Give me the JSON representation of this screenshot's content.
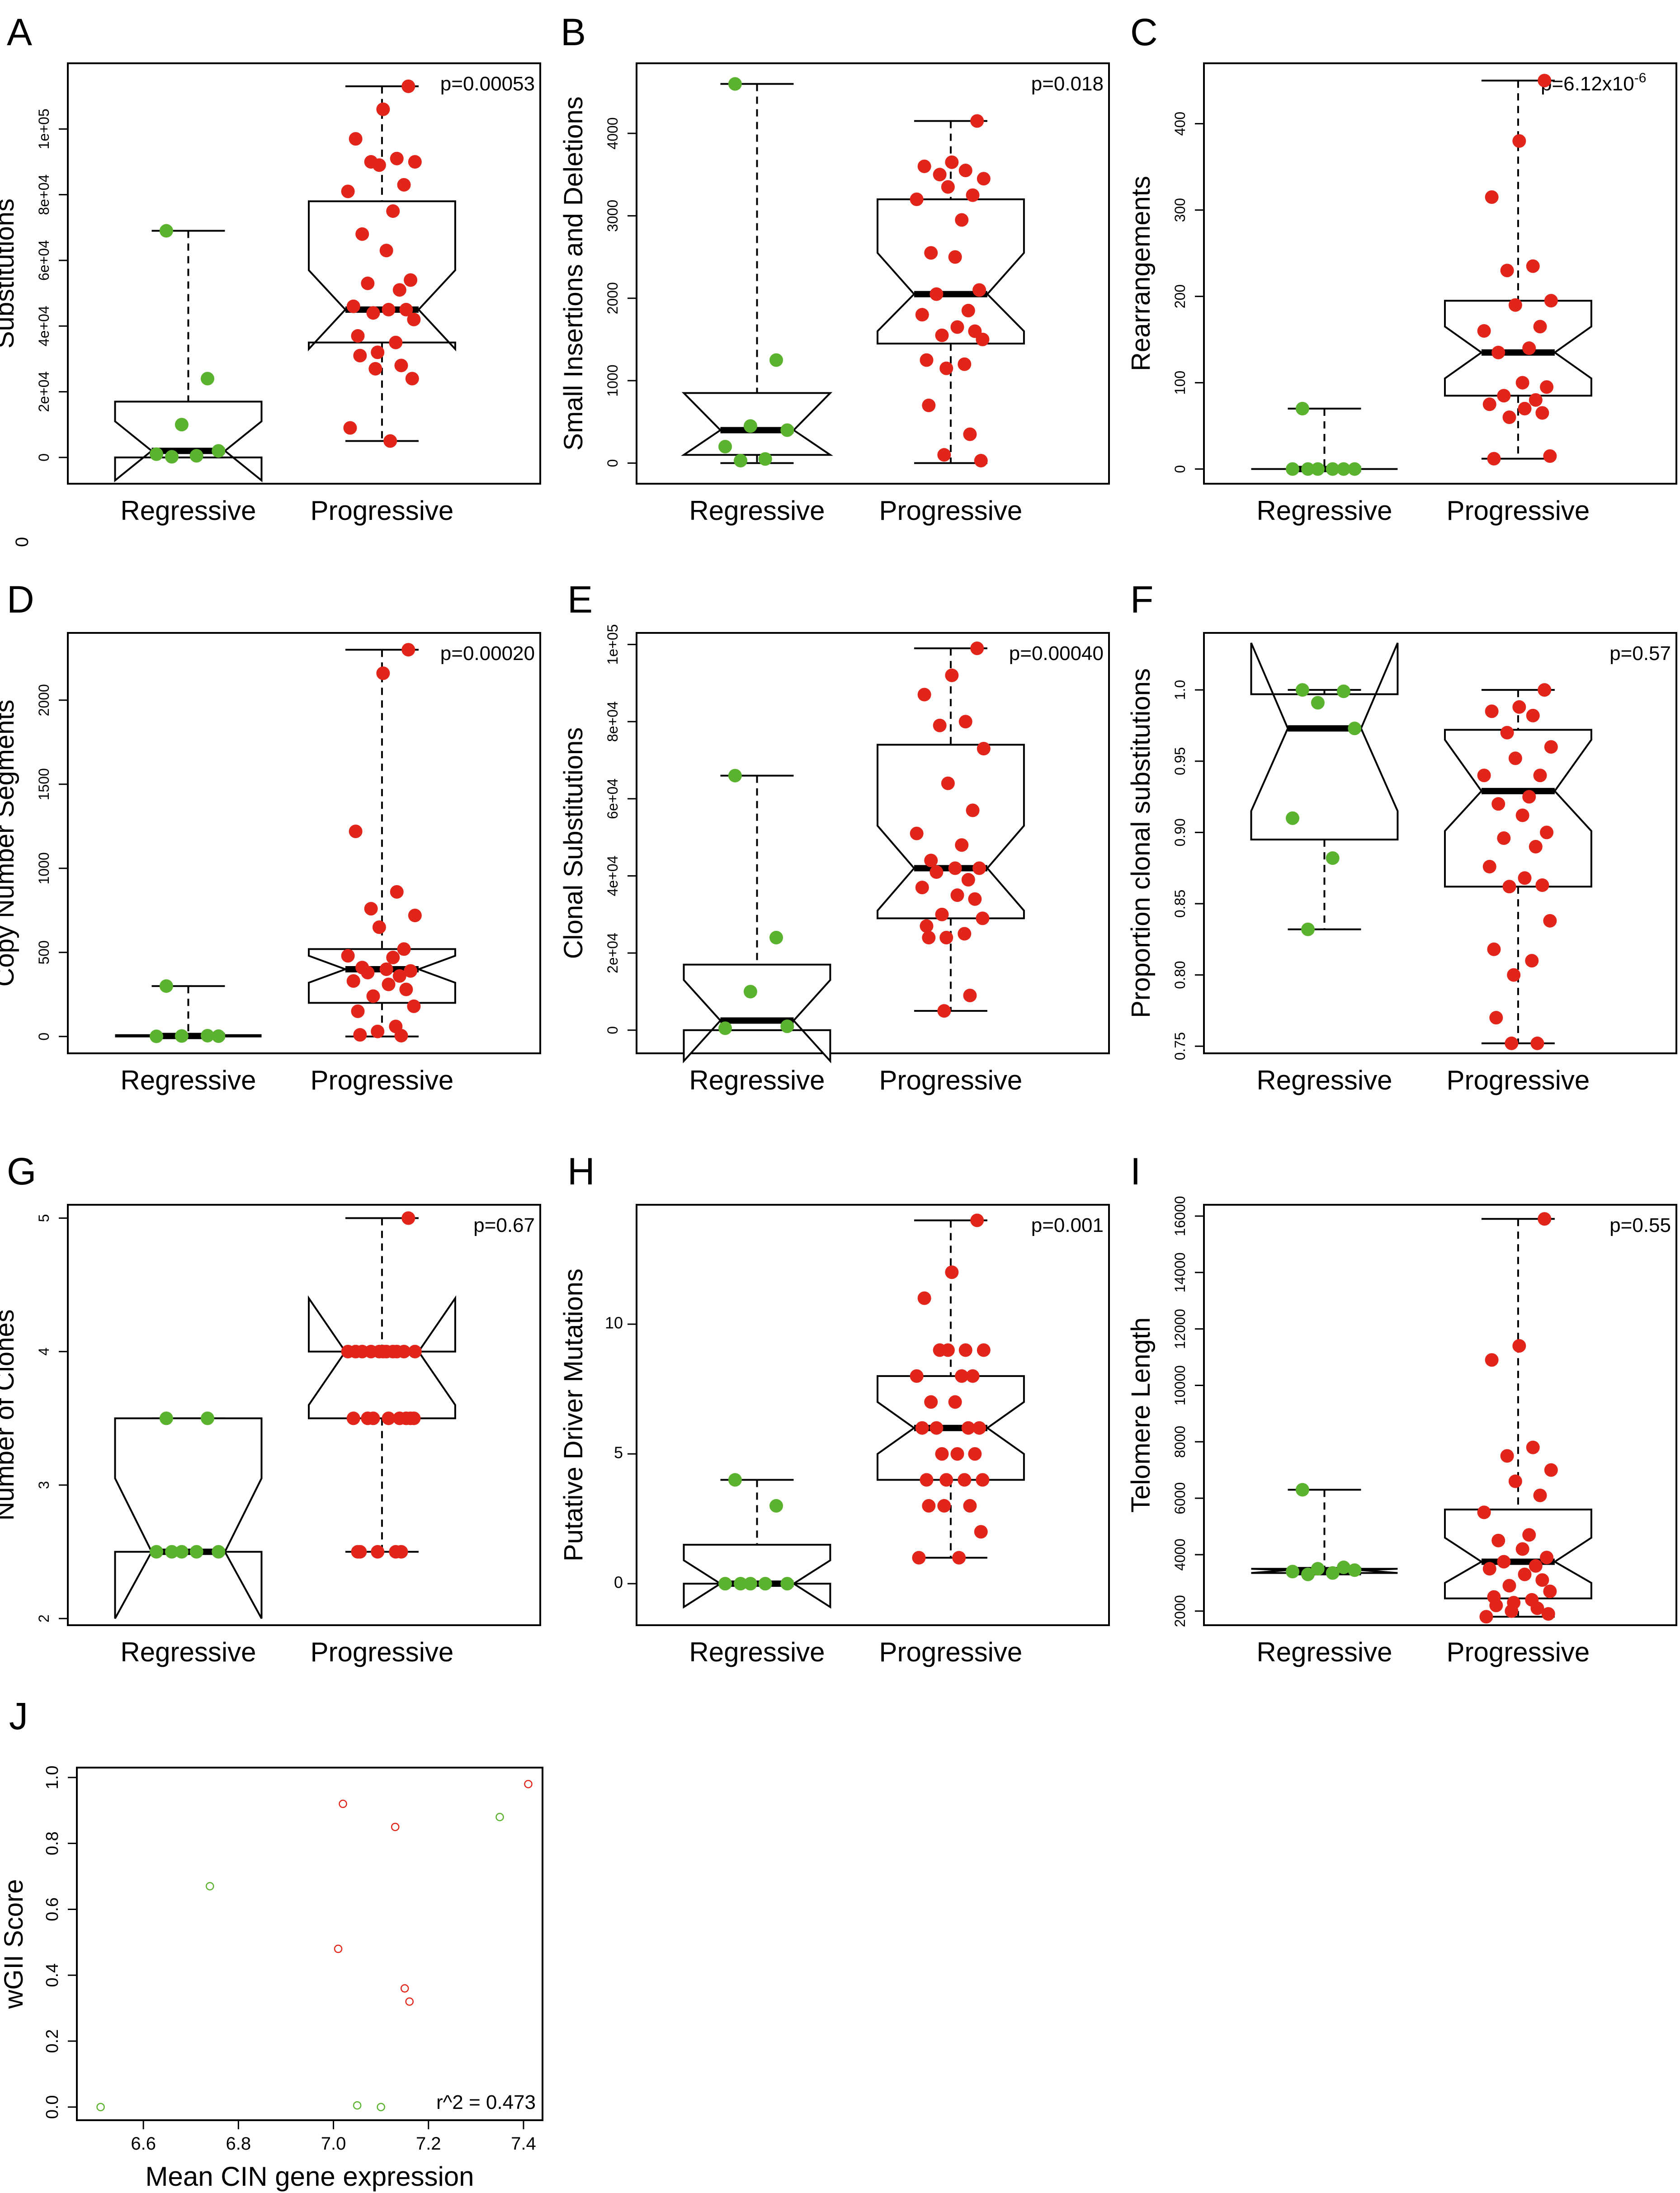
{
  "figure": {
    "stray_mark": "0"
  },
  "style": {
    "regressive_color": "#5ab22e",
    "progressive_color": "#e1251b"
  },
  "chart_data": [
    {
      "id": "A",
      "panel_label": "A",
      "type": "boxplot",
      "ylabel": "Substitutions",
      "p_text": "p=0.00053",
      "categories": [
        "Regressive",
        "Progressive"
      ],
      "ylim": [
        -8000,
        120000
      ],
      "ticks": [
        0,
        20000,
        40000,
        60000,
        80000,
        100000
      ],
      "tick_labels": [
        "0",
        "2e+04",
        "4e+04",
        "6e+04",
        "8e+04",
        "1e+05"
      ],
      "tick_rotate": true,
      "groups": [
        {
          "name": "Regressive",
          "q1": 0,
          "median": 2000,
          "q3": 17000,
          "wlo": 0,
          "whi": 69000,
          "nlo": -7000,
          "nhi": 11000,
          "points": [
            69000,
            24000,
            10000,
            2000,
            1000,
            500,
            200
          ]
        },
        {
          "name": "Progressive",
          "q1": 35000,
          "median": 45000,
          "q3": 78000,
          "wlo": 5000,
          "whi": 113000,
          "nlo": 33000,
          "nhi": 57000,
          "points": [
            113000,
            106000,
            97000,
            91000,
            90000,
            90000,
            89000,
            83000,
            81000,
            75000,
            68000,
            63000,
            54000,
            53000,
            51000,
            46000,
            45000,
            45000,
            44000,
            42000,
            37000,
            35000,
            32000,
            31000,
            28000,
            27000,
            24000,
            9000,
            5000
          ]
        }
      ]
    },
    {
      "id": "B",
      "panel_label": "B",
      "type": "boxplot",
      "ylabel": "Small Insertions and Deletions",
      "p_text": "p=0.018",
      "categories": [
        "Regressive",
        "Progressive"
      ],
      "ylim": [
        -250,
        4850
      ],
      "ticks": [
        0,
        1000,
        2000,
        3000,
        4000
      ],
      "tick_labels": [
        "0",
        "1000",
        "2000",
        "3000",
        "4000"
      ],
      "tick_rotate": true,
      "groups": [
        {
          "name": "Regressive",
          "q1": 100,
          "median": 400,
          "q3": 850,
          "wlo": 0,
          "whi": 4600,
          "nlo": 100,
          "nhi": 850,
          "points": [
            4600,
            1250,
            450,
            400,
            200,
            50,
            30
          ]
        },
        {
          "name": "Progressive",
          "q1": 1450,
          "median": 2050,
          "q3": 3200,
          "wlo": 0,
          "whi": 4150,
          "nlo": 1600,
          "nhi": 2550,
          "points": [
            4150,
            3650,
            3600,
            3550,
            3500,
            3450,
            3350,
            3250,
            3200,
            2950,
            2550,
            2500,
            2100,
            2050,
            1850,
            1800,
            1650,
            1600,
            1550,
            1500,
            1250,
            1200,
            1150,
            700,
            350,
            100,
            30
          ]
        }
      ]
    },
    {
      "id": "C",
      "panel_label": "C",
      "type": "boxplot",
      "ylabel": "Rearrangements",
      "p_text": "p=6.12x10",
      "p_sup": "-6",
      "categories": [
        "Regressive",
        "Progressive"
      ],
      "ylim": [
        -17,
        470
      ],
      "ticks": [
        0,
        100,
        200,
        300,
        400
      ],
      "tick_labels": [
        "0",
        "100",
        "200",
        "300",
        "400"
      ],
      "tick_rotate": true,
      "groups": [
        {
          "name": "Regressive",
          "q1": 0,
          "median": 0,
          "q3": 0,
          "wlo": 0,
          "whi": 70,
          "nlo": 0,
          "nhi": 0,
          "points": [
            70,
            0,
            0,
            0,
            0,
            0,
            0
          ]
        },
        {
          "name": "Progressive",
          "q1": 85,
          "median": 135,
          "q3": 195,
          "wlo": 12,
          "whi": 450,
          "nlo": 105,
          "nhi": 165,
          "points": [
            450,
            380,
            315,
            235,
            230,
            195,
            190,
            165,
            160,
            140,
            135,
            100,
            95,
            85,
            80,
            75,
            70,
            65,
            60,
            15,
            12
          ]
        }
      ]
    },
    {
      "id": "D",
      "panel_label": "D",
      "type": "boxplot",
      "ylabel": "Copy Number Segments",
      "p_text": "p=0.00020",
      "categories": [
        "Regressive",
        "Progressive"
      ],
      "ylim": [
        -100,
        2400
      ],
      "ticks": [
        0,
        500,
        1000,
        1500,
        2000
      ],
      "tick_labels": [
        "0",
        "500",
        "1000",
        "1500",
        "2000"
      ],
      "tick_rotate": true,
      "groups": [
        {
          "name": "Regressive",
          "q1": 0,
          "median": 3,
          "q3": 8,
          "wlo": 0,
          "whi": 300,
          "nlo": 0,
          "nhi": 8,
          "points": [
            300,
            5,
            3,
            2,
            1
          ]
        },
        {
          "name": "Progressive",
          "q1": 200,
          "median": 400,
          "q3": 520,
          "wlo": 0,
          "whi": 2300,
          "nlo": 320,
          "nhi": 480,
          "points": [
            2300,
            2160,
            1220,
            860,
            760,
            720,
            650,
            520,
            480,
            470,
            410,
            400,
            390,
            380,
            360,
            330,
            310,
            280,
            240,
            180,
            150,
            60,
            30,
            10,
            5
          ]
        }
      ]
    },
    {
      "id": "E",
      "panel_label": "E",
      "type": "boxplot",
      "ylabel": "Clonal Substitutions",
      "p_text": "p=0.00040",
      "categories": [
        "Regressive",
        "Progressive"
      ],
      "ylim": [
        -6000,
        103000
      ],
      "ticks": [
        0,
        20000,
        40000,
        60000,
        80000,
        100000
      ],
      "tick_labels": [
        "0",
        "2e+04",
        "4e+04",
        "6e+04",
        "8e+04",
        "1e+05"
      ],
      "tick_rotate": true,
      "groups": [
        {
          "name": "Regressive",
          "q1": 0,
          "median": 2500,
          "q3": 17000,
          "wlo": 0,
          "whi": 66000,
          "nlo": -8000,
          "nhi": 13000,
          "points": [
            66000,
            24000,
            10000,
            1000,
            500
          ]
        },
        {
          "name": "Progressive",
          "q1": 29000,
          "median": 42000,
          "q3": 74000,
          "wlo": 5000,
          "whi": 99000,
          "nlo": 31000,
          "nhi": 53000,
          "points": [
            99000,
            92000,
            87000,
            80000,
            79000,
            73000,
            64000,
            57000,
            51000,
            48000,
            44000,
            42000,
            42000,
            41000,
            39000,
            37000,
            35000,
            34000,
            30000,
            29000,
            27000,
            25000,
            24000,
            24000,
            9000,
            5000
          ]
        }
      ]
    },
    {
      "id": "F",
      "panel_label": "F",
      "type": "boxplot",
      "ylabel": "Proportion clonal substitutions",
      "p_text": "p=0.57",
      "categories": [
        "Regressive",
        "Progressive"
      ],
      "ylim": [
        0.745,
        1.04
      ],
      "ticks": [
        0.75,
        0.8,
        0.85,
        0.9,
        0.95,
        1.0
      ],
      "tick_labels": [
        "0.75",
        "0.80",
        "0.85",
        "0.90",
        "0.95",
        "1.0"
      ],
      "tick_rotate": true,
      "groups": [
        {
          "name": "Regressive",
          "q1": 0.895,
          "median": 0.973,
          "q3": 0.997,
          "wlo": 0.832,
          "whi": 1.0,
          "nlo": 0.915,
          "nhi": 1.033,
          "points": [
            1.0,
            0.999,
            0.991,
            0.973,
            0.91,
            0.882,
            0.832
          ]
        },
        {
          "name": "Progressive",
          "q1": 0.862,
          "median": 0.929,
          "q3": 0.972,
          "wlo": 0.752,
          "whi": 1.0,
          "nlo": 0.901,
          "nhi": 0.965,
          "points": [
            1.0,
            0.988,
            0.985,
            0.982,
            0.97,
            0.96,
            0.952,
            0.94,
            0.94,
            0.925,
            0.92,
            0.912,
            0.9,
            0.896,
            0.89,
            0.876,
            0.868,
            0.863,
            0.862,
            0.838,
            0.818,
            0.81,
            0.8,
            0.77,
            0.752,
            0.752
          ]
        }
      ]
    },
    {
      "id": "G",
      "panel_label": "G",
      "type": "boxplot",
      "ylabel": "Number of Clones",
      "p_text": "p=0.67",
      "categories": [
        "Regressive",
        "Progressive"
      ],
      "ylim": [
        1.95,
        5.1
      ],
      "ticks": [
        2,
        3,
        4,
        5
      ],
      "tick_labels": [
        "2",
        "3",
        "4",
        "5"
      ],
      "tick_rotate": true,
      "groups": [
        {
          "name": "Regressive",
          "q1": 2.5,
          "median": 2.5,
          "q3": 3.5,
          "wlo": 2.5,
          "whi": 3.5,
          "nlo": 2.0,
          "nhi": 3.05,
          "points": [
            3.5,
            3.5,
            2.5,
            2.5,
            2.5,
            2.5,
            2.5
          ]
        },
        {
          "name": "Progressive",
          "q1": 3.5,
          "median": 4.0,
          "q3": 4.0,
          "wlo": 2.5,
          "whi": 5.0,
          "nlo": 3.6,
          "nhi": 4.4,
          "points": [
            5,
            4,
            4,
            4,
            4,
            4,
            4,
            4,
            4,
            4,
            4,
            4,
            3.5,
            3.5,
            3.5,
            3.5,
            3.5,
            3.5,
            3.5,
            3.5,
            2.5,
            2.5,
            2.5,
            2.5,
            2.5
          ]
        }
      ]
    },
    {
      "id": "H",
      "panel_label": "H",
      "type": "boxplot",
      "ylabel": "Putative Driver Mutations",
      "p_text": "p=0.001",
      "categories": [
        "Regressive",
        "Progressive"
      ],
      "ylim": [
        -1.6,
        14.6
      ],
      "ticks": [
        0,
        5,
        10
      ],
      "tick_labels": [
        "0",
        "5",
        "10"
      ],
      "tick_rotate": false,
      "groups": [
        {
          "name": "Regressive",
          "q1": 0,
          "median": 0,
          "q3": 1.5,
          "wlo": 0,
          "whi": 4,
          "nlo": -0.9,
          "nhi": 0.9,
          "points": [
            4,
            3,
            0,
            0,
            0,
            0,
            0
          ]
        },
        {
          "name": "Progressive",
          "q1": 4,
          "median": 6,
          "q3": 8,
          "wlo": 1,
          "whi": 14,
          "nlo": 5,
          "nhi": 7,
          "points": [
            14,
            12,
            11,
            9,
            9,
            9,
            9,
            8,
            8,
            8,
            7,
            7,
            6,
            6,
            6,
            6,
            5,
            5,
            5,
            4,
            4,
            4,
            4,
            3,
            3,
            3,
            2,
            1,
            1
          ]
        }
      ]
    },
    {
      "id": "I",
      "panel_label": "I",
      "type": "boxplot",
      "ylabel": "Telomere Length",
      "p_text": "p=0.55",
      "categories": [
        "Regressive",
        "Progressive"
      ],
      "ylim": [
        1500,
        16400
      ],
      "ticks": [
        2000,
        4000,
        6000,
        8000,
        10000,
        12000,
        14000,
        16000
      ],
      "tick_labels": [
        "2000",
        "4000",
        "6000",
        "8000",
        "10000",
        "12000",
        "14000",
        "16000"
      ],
      "tick_rotate": true,
      "groups": [
        {
          "name": "Regressive",
          "q1": 3350,
          "median": 3450,
          "q3": 3500,
          "wlo": 3300,
          "whi": 6300,
          "nlo": 3350,
          "nhi": 3500,
          "points": [
            6300,
            3550,
            3500,
            3450,
            3400,
            3350,
            3300
          ]
        },
        {
          "name": "Progressive",
          "q1": 2450,
          "median": 3750,
          "q3": 5600,
          "wlo": 1800,
          "whi": 15900,
          "nlo": 3000,
          "nhi": 4600,
          "points": [
            15900,
            11400,
            10900,
            7800,
            7500,
            7000,
            6600,
            6100,
            5500,
            4700,
            4500,
            4200,
            3900,
            3750,
            3600,
            3500,
            3300,
            3100,
            2900,
            2700,
            2500,
            2400,
            2300,
            2200,
            2100,
            2000,
            1900,
            1800
          ]
        }
      ]
    },
    {
      "id": "J",
      "panel_label": "J",
      "type": "scatter",
      "xlabel": "Mean CIN gene expression",
      "ylabel": "wGII Score",
      "annotation": "r^2 = 0.473",
      "xlim": [
        6.46,
        7.44
      ],
      "ylim": [
        -0.04,
        1.03
      ],
      "x_ticks": [
        6.6,
        6.8,
        7.0,
        7.2,
        7.4
      ],
      "x_tick_labels": [
        "6.6",
        "6.8",
        "7.0",
        "7.2",
        "7.4"
      ],
      "y_ticks": [
        0,
        0.2,
        0.4,
        0.6,
        0.8,
        1.0
      ],
      "y_tick_labels": [
        "0.0",
        "0.2",
        "0.4",
        "0.6",
        "0.8",
        "1.0"
      ],
      "series": [
        {
          "name": "Regressive",
          "color": "regressive",
          "points": [
            [
              6.51,
              0.0
            ],
            [
              6.74,
              0.67
            ],
            [
              7.35,
              0.88
            ],
            [
              7.05,
              0.005
            ],
            [
              7.1,
              0.0
            ]
          ]
        },
        {
          "name": "Progressive",
          "color": "progressive",
          "points": [
            [
              7.02,
              0.92
            ],
            [
              7.13,
              0.85
            ],
            [
              7.41,
              0.98
            ],
            [
              7.01,
              0.48
            ],
            [
              7.15,
              0.36
            ],
            [
              7.16,
              0.32
            ]
          ]
        }
      ]
    }
  ]
}
